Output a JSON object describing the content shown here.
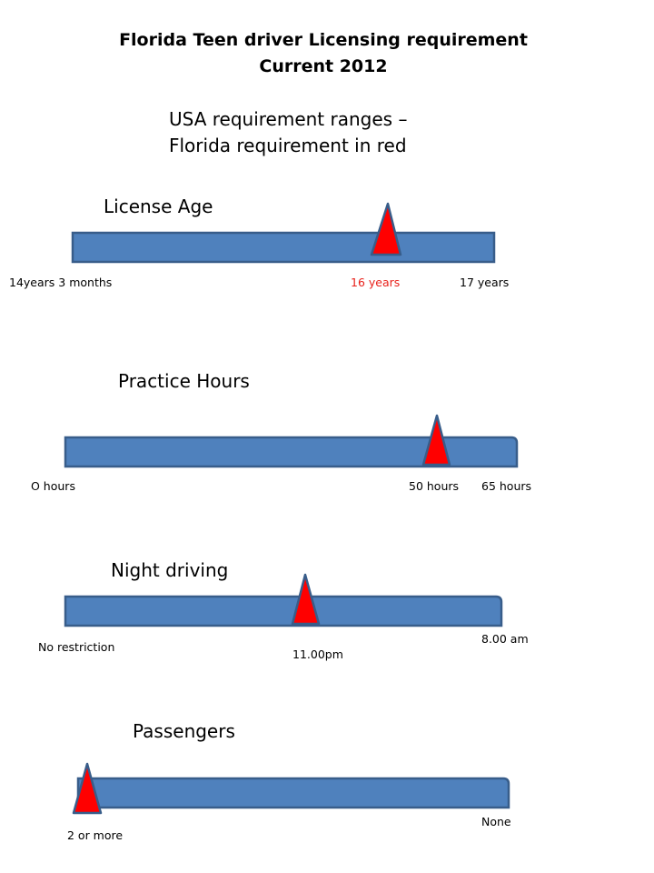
{
  "title": {
    "line1": "Florida Teen  driver Licensing requirement",
    "line2": "Current 2012"
  },
  "subtitle": {
    "line1": "USA requirement ranges –",
    "line2": "Florida requirement  in red"
  },
  "colors": {
    "bar_fill": "#4f81bd",
    "bar_stroke": "#385d8a",
    "marker_fill": "#ff0000",
    "marker_stroke": "#385d8a",
    "florida_label": "#e8201a"
  },
  "scales": [
    {
      "heading": "License Age",
      "labels": {
        "min": "14years 3 months",
        "florida": "16 years",
        "max": "17 years"
      },
      "florida_position": 0.75
    },
    {
      "heading": "Practice Hours",
      "labels": {
        "min": "O hours",
        "florida": "50 hours",
        "max": "65 hours"
      },
      "florida_position": 0.77
    },
    {
      "heading": "Night driving",
      "labels": {
        "min": "No restriction",
        "florida": "11.00pm",
        "max": "8.00 am"
      },
      "florida_position": 0.55
    },
    {
      "heading": "Passengers",
      "labels": {
        "min": "2 or more",
        "max": "None"
      },
      "florida_position": 0.0
    }
  ]
}
